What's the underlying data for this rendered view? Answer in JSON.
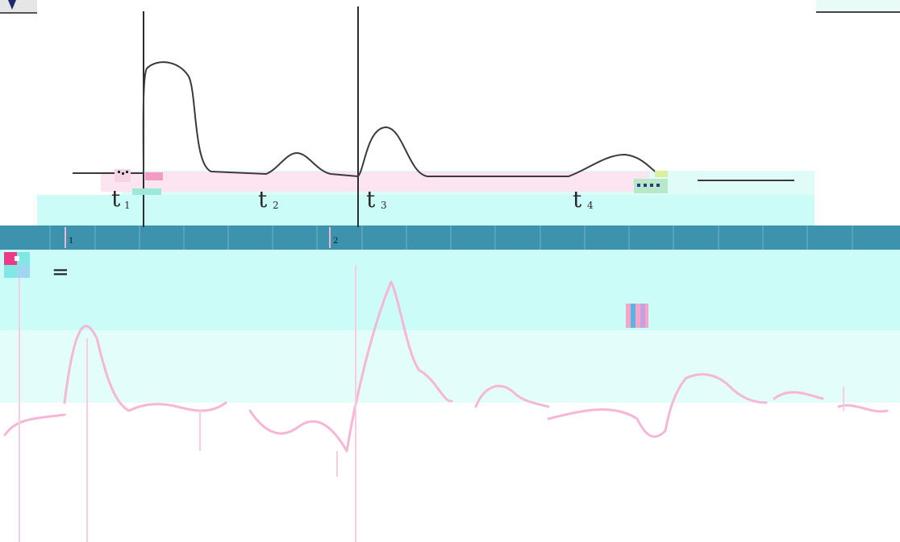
{
  "diagram": {
    "time_labels": [
      {
        "main": "t",
        "sub": "1"
      },
      {
        "main": "t",
        "sub": "2"
      },
      {
        "main": "t",
        "sub": "3"
      },
      {
        "main": "t",
        "sub": "4"
      }
    ],
    "strip_markers": [
      "1",
      "2"
    ],
    "equals_sign": "="
  },
  "colors": {
    "curve": "#3a3a3a",
    "baseline_band": "#fce4f0",
    "cyan_band": "#ccfcf8",
    "strip": "#3d93ad",
    "pink_trace": "#f6b6d6",
    "logo_box": "#e8e8e8",
    "logo_mark": "#1d2a6a"
  }
}
